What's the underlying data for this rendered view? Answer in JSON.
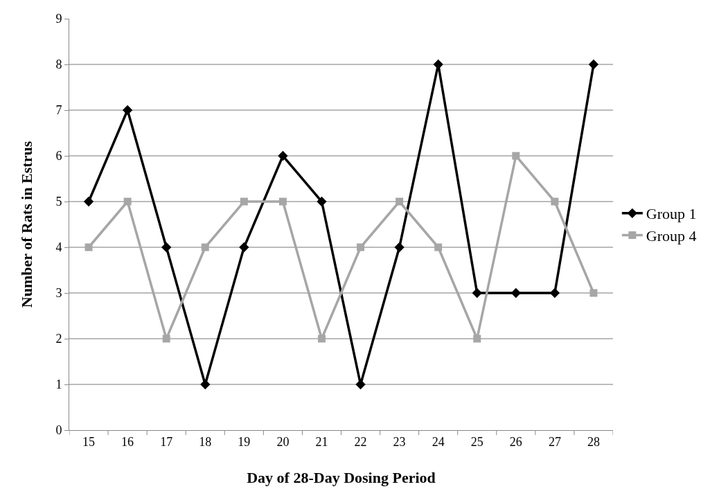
{
  "chart_data": {
    "type": "line",
    "xlabel": "Day of 28-Day Dosing Period",
    "ylabel": "Number of Rats in Estrus",
    "categories": [
      "15",
      "16",
      "17",
      "18",
      "19",
      "20",
      "21",
      "22",
      "23",
      "24",
      "25",
      "26",
      "27",
      "28"
    ],
    "series": [
      {
        "name": "Group 1",
        "color": "#000000",
        "marker": "diamond",
        "values": [
          5,
          7,
          4,
          1,
          4,
          6,
          5,
          1,
          4,
          8,
          3,
          3,
          3,
          8
        ]
      },
      {
        "name": "Group 4",
        "color": "#a6a6a6",
        "marker": "square",
        "values": [
          4,
          5,
          2,
          4,
          5,
          5,
          2,
          4,
          5,
          4,
          2,
          6,
          5,
          3
        ]
      }
    ],
    "ylim": [
      0,
      9
    ],
    "yticks": [
      0,
      1,
      2,
      3,
      4,
      5,
      6,
      7,
      8,
      9
    ],
    "grid": "y",
    "legend": "right",
    "line_style": "solid"
  }
}
